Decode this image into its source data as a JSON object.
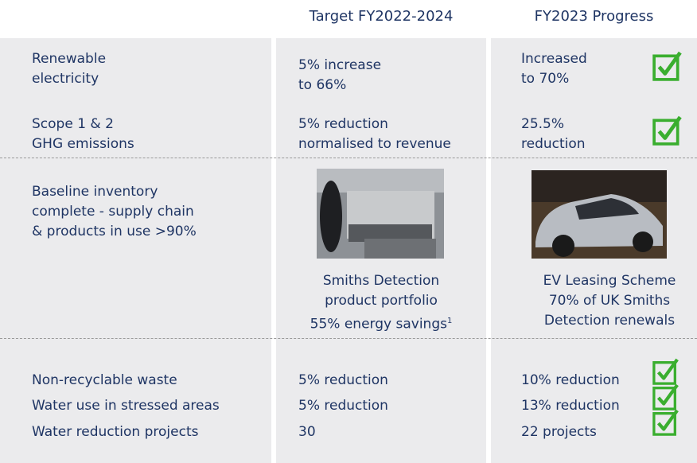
{
  "header": {
    "columns": [
      "Target FY2022-2024",
      "FY2023 Progress"
    ]
  },
  "rows": [
    {
      "metric": [
        "Renewable",
        "electricity"
      ],
      "target": [
        "5% increase",
        "to 66%"
      ],
      "progress": [
        "Increased",
        "to 70%"
      ],
      "achieved": true
    },
    {
      "metric": [
        "Scope 1 & 2",
        "GHG emissions"
      ],
      "target": [
        "5% reduction",
        "normalised to revenue"
      ],
      "progress": [
        "25.5%",
        "reduction"
      ],
      "achieved": true
    }
  ],
  "highlight": {
    "metric": [
      "Baseline inventory",
      "complete - supply chain",
      "& products in use >90%"
    ],
    "target_caption": [
      "Smiths Detection",
      "product portfolio",
      "55% energy savings"
    ],
    "target_footnote": "1",
    "progress_caption": [
      "EV Leasing Scheme",
      "70% of UK Smiths",
      "Detection renewals"
    ]
  },
  "other": [
    {
      "metric": "Non-recyclable waste",
      "target": "5% reduction",
      "progress": "10% reduction",
      "achieved": true
    },
    {
      "metric": "Water use in stressed areas",
      "target": "5% reduction",
      "progress": "13% reduction",
      "achieved": true
    },
    {
      "metric": "Water reduction projects",
      "target": "30",
      "progress": "22 projects",
      "achieved": true
    }
  ]
}
